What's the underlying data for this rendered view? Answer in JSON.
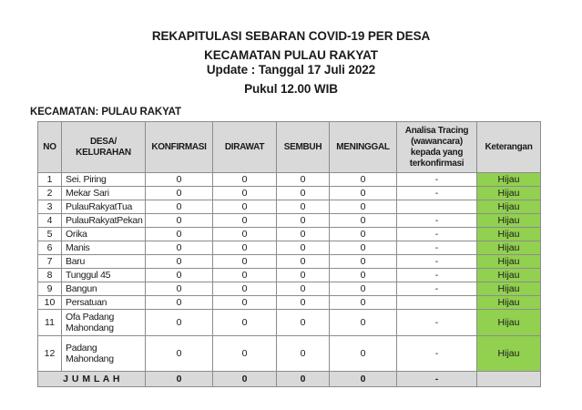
{
  "report": {
    "title_lines": [
      "REKAPITULASI SEBARAN COVID-19 PER DESA",
      "KECAMATAN PULAU RAKYAT",
      "Update : Tanggal 17 Juli 2022",
      "Pukul 12.00 WIB"
    ],
    "section_label": "KECAMATAN: PULAU RAKYAT"
  },
  "table": {
    "headers": [
      "NO",
      "DESA/ KELURAHAN",
      "KONFIRMASI",
      "DIRAWAT",
      "SEMBUH",
      "MENINGGAL",
      "Analisa Tracing (wawancara) kepada yang terkonfirmasi",
      "Keterangan"
    ],
    "rows": [
      {
        "no": "1",
        "desa": "Sei. Piring",
        "konfirmasi": "0",
        "dirawat": "0",
        "sembuh": "0",
        "meninggal": "0",
        "analisa": "-",
        "keterangan": "Hijau"
      },
      {
        "no": "2",
        "desa": "Mekar Sari",
        "konfirmasi": "0",
        "dirawat": "0",
        "sembuh": "0",
        "meninggal": "0",
        "analisa": "-",
        "keterangan": "Hijau"
      },
      {
        "no": "3",
        "desa": "PulauRakyatTua",
        "konfirmasi": "0",
        "dirawat": "0",
        "sembuh": "0",
        "meninggal": "0",
        "analisa": "",
        "keterangan": "Hijau"
      },
      {
        "no": "4",
        "desa": "PulauRakyatPekan",
        "konfirmasi": "0",
        "dirawat": "0",
        "sembuh": "0",
        "meninggal": "0",
        "analisa": "-",
        "keterangan": "Hijau"
      },
      {
        "no": "5",
        "desa": "Orika",
        "konfirmasi": "0",
        "dirawat": "0",
        "sembuh": "0",
        "meninggal": "0",
        "analisa": "-",
        "keterangan": "Hijau"
      },
      {
        "no": "6",
        "desa": "Manis",
        "konfirmasi": "0",
        "dirawat": "0",
        "sembuh": "0",
        "meninggal": "0",
        "analisa": "-",
        "keterangan": "Hijau"
      },
      {
        "no": "7",
        "desa": "Baru",
        "konfirmasi": "0",
        "dirawat": "0",
        "sembuh": "0",
        "meninggal": "0",
        "analisa": "-",
        "keterangan": "Hijau"
      },
      {
        "no": "8",
        "desa": "Tunggul 45",
        "konfirmasi": "0",
        "dirawat": "0",
        "sembuh": "0",
        "meninggal": "0",
        "analisa": "-",
        "keterangan": "Hijau"
      },
      {
        "no": "9",
        "desa": "Bangun",
        "konfirmasi": "0",
        "dirawat": "0",
        "sembuh": "0",
        "meninggal": "0",
        "analisa": "-",
        "keterangan": "Hijau"
      },
      {
        "no": "10",
        "desa": "Persatuan",
        "konfirmasi": "0",
        "dirawat": "0",
        "sembuh": "0",
        "meninggal": "0",
        "analisa": "",
        "keterangan": "Hijau"
      },
      {
        "no": "11",
        "desa": "Ofa Padang Mahondang",
        "konfirmasi": "0",
        "dirawat": "0",
        "sembuh": "0",
        "meninggal": "0",
        "analisa": "-",
        "keterangan": "Hijau"
      },
      {
        "no": "12",
        "desa": "Padang Mahondang",
        "konfirmasi": "0",
        "dirawat": "0",
        "sembuh": "0",
        "meninggal": "0",
        "analisa": "-",
        "keterangan": "Hijau"
      }
    ],
    "total_row": {
      "label": "J U M L A H",
      "konfirmasi": "0",
      "dirawat": "0",
      "sembuh": "0",
      "meninggal": "0",
      "analisa": "-",
      "keterangan": ""
    }
  },
  "colors": {
    "header_bg": "#d9d9d9",
    "total_bg": "#d9d9d9",
    "status_green": "#92d050"
  }
}
